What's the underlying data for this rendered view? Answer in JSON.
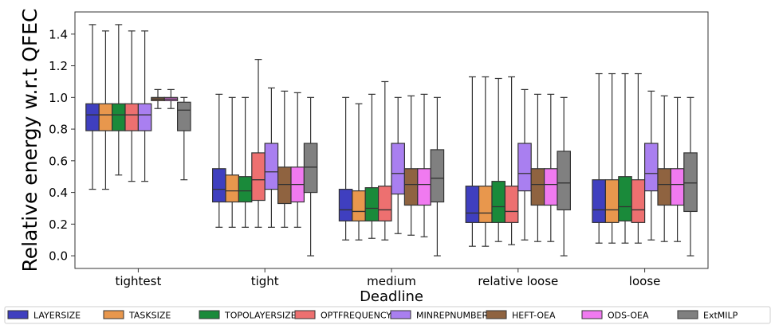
{
  "chart_data": {
    "type": "box",
    "xlabel": "Deadline",
    "ylabel": "Relative energy w.r.t QFEC",
    "ylim": [
      -0.08,
      1.54
    ],
    "yticks": [
      "0.0",
      "0.2",
      "0.4",
      "0.6",
      "0.8",
      "1.0",
      "1.2",
      "1.4"
    ],
    "grid": false,
    "legend_position": "bottom",
    "categories": [
      "tightest",
      "tight",
      "medium",
      "relative loose",
      "loose"
    ],
    "series": [
      {
        "name": "LAYERSIZE",
        "color": "#3f3fbf",
        "boxes": [
          {
            "whislo": 0.42,
            "q1": 0.79,
            "med": 0.89,
            "q3": 0.96,
            "whishi": 1.46
          },
          {
            "whislo": 0.18,
            "q1": 0.34,
            "med": 0.42,
            "q3": 0.55,
            "whishi": 1.02
          },
          {
            "whislo": 0.1,
            "q1": 0.22,
            "med": 0.29,
            "q3": 0.42,
            "whishi": 1.0
          },
          {
            "whislo": 0.06,
            "q1": 0.21,
            "med": 0.27,
            "q3": 0.44,
            "whishi": 1.13
          },
          {
            "whislo": 0.08,
            "q1": 0.21,
            "med": 0.29,
            "q3": 0.48,
            "whishi": 1.15
          }
        ]
      },
      {
        "name": "TASKSIZE",
        "color": "#e8974d",
        "boxes": [
          {
            "whislo": 0.42,
            "q1": 0.79,
            "med": 0.89,
            "q3": 0.96,
            "whishi": 1.42
          },
          {
            "whislo": 0.18,
            "q1": 0.34,
            "med": 0.41,
            "q3": 0.51,
            "whishi": 1.0
          },
          {
            "whislo": 0.1,
            "q1": 0.22,
            "med": 0.28,
            "q3": 0.41,
            "whishi": 0.96
          },
          {
            "whislo": 0.06,
            "q1": 0.21,
            "med": 0.27,
            "q3": 0.44,
            "whishi": 1.13
          },
          {
            "whislo": 0.08,
            "q1": 0.21,
            "med": 0.29,
            "q3": 0.48,
            "whishi": 1.15
          }
        ]
      },
      {
        "name": "TOPOLAYERSIZE",
        "color": "#1a8a3a",
        "boxes": [
          {
            "whislo": 0.51,
            "q1": 0.79,
            "med": 0.89,
            "q3": 0.96,
            "whishi": 1.46
          },
          {
            "whislo": 0.18,
            "q1": 0.34,
            "med": 0.41,
            "q3": 0.5,
            "whishi": 1.0
          },
          {
            "whislo": 0.11,
            "q1": 0.22,
            "med": 0.3,
            "q3": 0.43,
            "whishi": 1.02
          },
          {
            "whislo": 0.09,
            "q1": 0.21,
            "med": 0.31,
            "q3": 0.47,
            "whishi": 1.12
          },
          {
            "whislo": 0.08,
            "q1": 0.22,
            "med": 0.31,
            "q3": 0.5,
            "whishi": 1.15
          }
        ]
      },
      {
        "name": "OPTFREQUENCY",
        "color": "#ed7070",
        "boxes": [
          {
            "whislo": 0.47,
            "q1": 0.79,
            "med": 0.89,
            "q3": 0.96,
            "whishi": 1.42
          },
          {
            "whislo": 0.18,
            "q1": 0.35,
            "med": 0.48,
            "q3": 0.65,
            "whishi": 1.24
          },
          {
            "whislo": 0.1,
            "q1": 0.22,
            "med": 0.29,
            "q3": 0.44,
            "whishi": 1.1
          },
          {
            "whislo": 0.07,
            "q1": 0.21,
            "med": 0.28,
            "q3": 0.44,
            "whishi": 1.13
          },
          {
            "whislo": 0.08,
            "q1": 0.21,
            "med": 0.29,
            "q3": 0.48,
            "whishi": 1.15
          }
        ]
      },
      {
        "name": "MINREPNUMBER",
        "color": "#a97ff0",
        "boxes": [
          {
            "whislo": 0.47,
            "q1": 0.79,
            "med": 0.89,
            "q3": 0.96,
            "whishi": 1.42
          },
          {
            "whislo": 0.18,
            "q1": 0.42,
            "med": 0.53,
            "q3": 0.71,
            "whishi": 1.06
          },
          {
            "whislo": 0.14,
            "q1": 0.39,
            "med": 0.52,
            "q3": 0.71,
            "whishi": 1.0
          },
          {
            "whislo": 0.1,
            "q1": 0.41,
            "med": 0.52,
            "q3": 0.71,
            "whishi": 1.05
          },
          {
            "whislo": 0.1,
            "q1": 0.41,
            "med": 0.52,
            "q3": 0.71,
            "whishi": 1.04
          }
        ]
      },
      {
        "name": "HEFT-OEA",
        "color": "#8f6340",
        "boxes": [
          {
            "whislo": 0.93,
            "q1": 0.98,
            "med": 0.99,
            "q3": 1.0,
            "whishi": 1.05
          },
          {
            "whislo": 0.18,
            "q1": 0.33,
            "med": 0.45,
            "q3": 0.56,
            "whishi": 1.04
          },
          {
            "whislo": 0.13,
            "q1": 0.32,
            "med": 0.45,
            "q3": 0.55,
            "whishi": 1.01
          },
          {
            "whislo": 0.09,
            "q1": 0.32,
            "med": 0.45,
            "q3": 0.55,
            "whishi": 1.02
          },
          {
            "whislo": 0.09,
            "q1": 0.32,
            "med": 0.45,
            "q3": 0.55,
            "whishi": 1.01
          }
        ]
      },
      {
        "name": "ODS-OEA",
        "color": "#f07af0",
        "boxes": [
          {
            "whislo": 0.93,
            "q1": 0.98,
            "med": 0.99,
            "q3": 1.0,
            "whishi": 1.05
          },
          {
            "whislo": 0.18,
            "q1": 0.34,
            "med": 0.45,
            "q3": 0.56,
            "whishi": 1.03
          },
          {
            "whislo": 0.12,
            "q1": 0.32,
            "med": 0.45,
            "q3": 0.55,
            "whishi": 1.02
          },
          {
            "whislo": 0.09,
            "q1": 0.32,
            "med": 0.45,
            "q3": 0.55,
            "whishi": 1.02
          },
          {
            "whislo": 0.09,
            "q1": 0.32,
            "med": 0.45,
            "q3": 0.55,
            "whishi": 1.0
          }
        ]
      },
      {
        "name": "ExtMILP",
        "color": "#808080",
        "boxes": [
          {
            "whislo": 0.48,
            "q1": 0.79,
            "med": 0.92,
            "q3": 0.97,
            "whishi": 1.0
          },
          {
            "whislo": 0.0,
            "q1": 0.4,
            "med": 0.56,
            "q3": 0.71,
            "whishi": 1.0
          },
          {
            "whislo": 0.0,
            "q1": 0.34,
            "med": 0.49,
            "q3": 0.67,
            "whishi": 1.0
          },
          {
            "whislo": 0.0,
            "q1": 0.29,
            "med": 0.46,
            "q3": 0.66,
            "whishi": 1.0
          },
          {
            "whislo": 0.0,
            "q1": 0.28,
            "med": 0.46,
            "q3": 0.65,
            "whishi": 1.0
          }
        ]
      }
    ]
  }
}
